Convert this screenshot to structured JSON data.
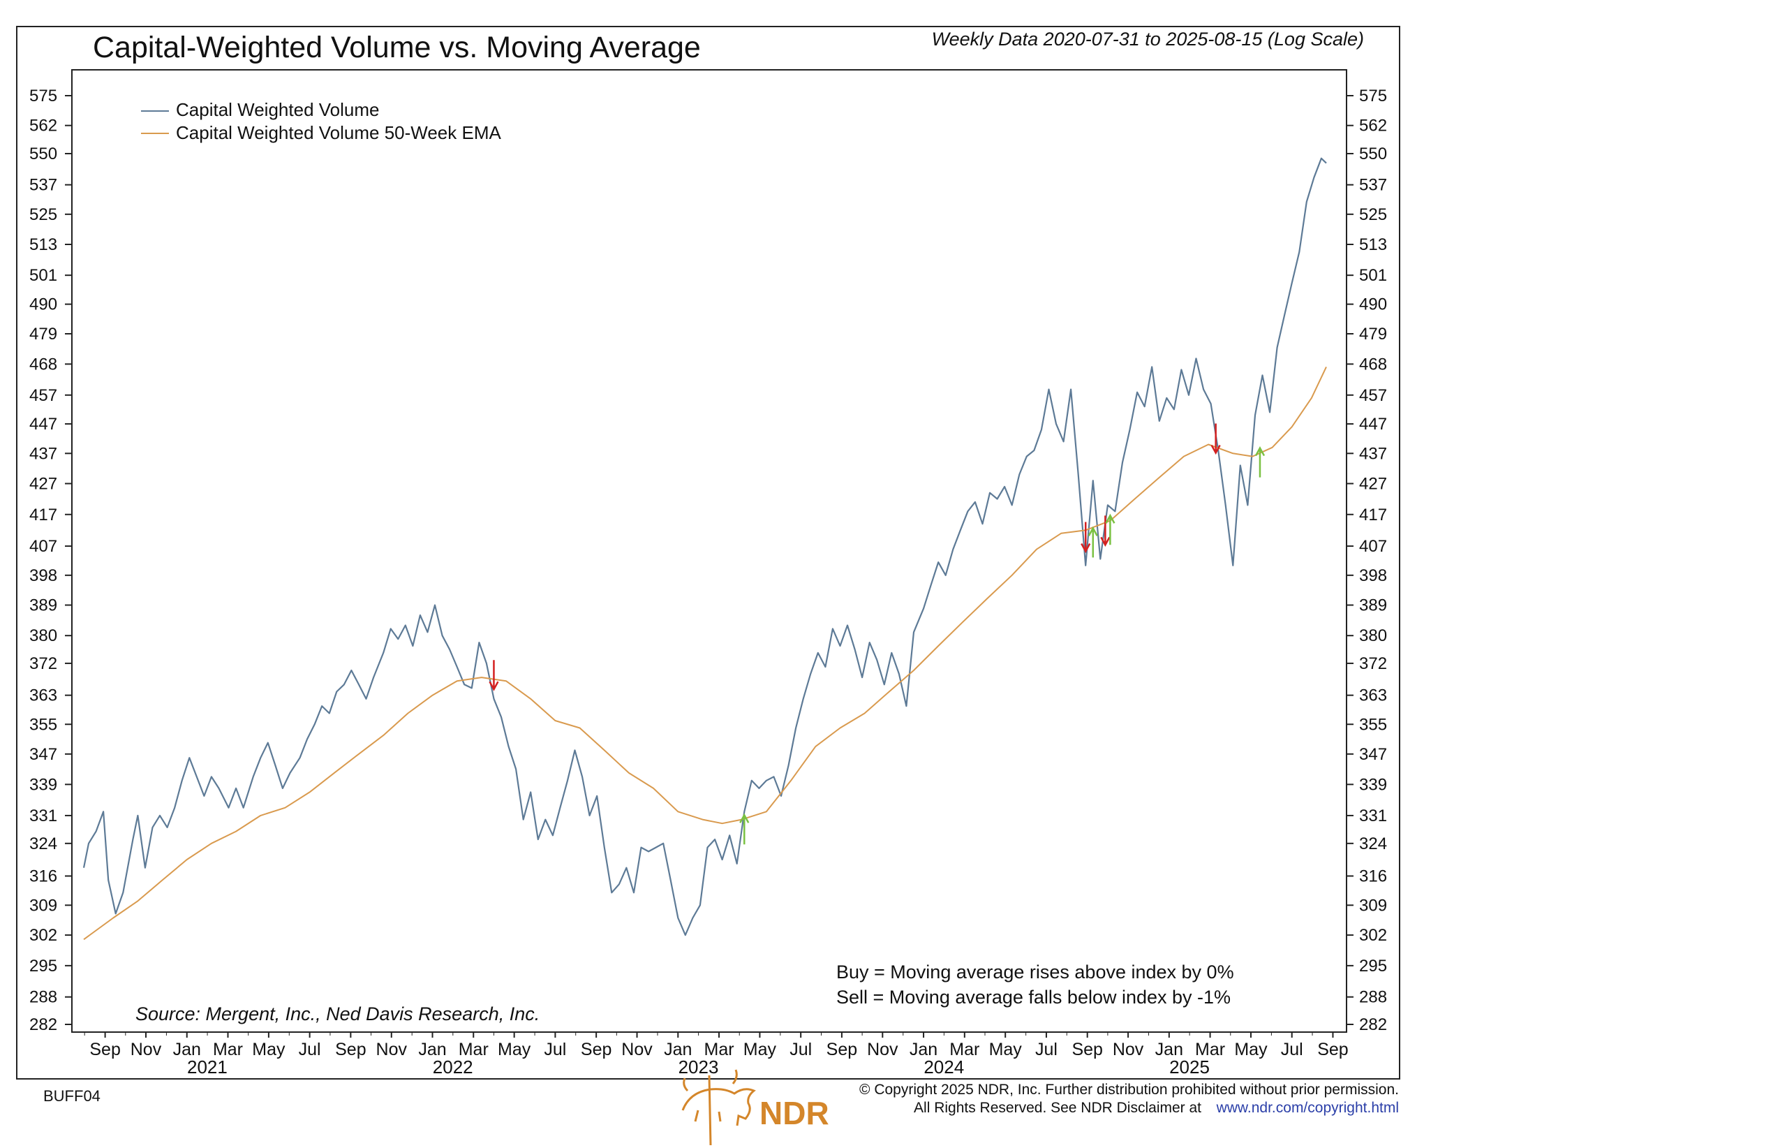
{
  "chart_data": {
    "type": "line",
    "scale": "log",
    "title": "Capital-Weighted Volume vs. Moving Average",
    "subtitle": "Weekly Data 2020-07-31 to 2025-08-15 (Log Scale)",
    "ylim": [
      280,
      580
    ],
    "xlim": [
      2020.58,
      2025.66
    ],
    "y_ticks": [
      575,
      562,
      550,
      537,
      525,
      513,
      501,
      490,
      479,
      468,
      457,
      447,
      437,
      427,
      417,
      407,
      398,
      389,
      380,
      372,
      363,
      355,
      347,
      339,
      331,
      324,
      316,
      309,
      302,
      295,
      288,
      282
    ],
    "x_month_labels": [
      {
        "t": 2020.667,
        "label": "Sep"
      },
      {
        "t": 2020.833,
        "label": "Nov"
      },
      {
        "t": 2021.0,
        "label": "Jan"
      },
      {
        "t": 2021.167,
        "label": "Mar"
      },
      {
        "t": 2021.333,
        "label": "May"
      },
      {
        "t": 2021.5,
        "label": "Jul"
      },
      {
        "t": 2021.667,
        "label": "Sep"
      },
      {
        "t": 2021.833,
        "label": "Nov"
      },
      {
        "t": 2022.0,
        "label": "Jan"
      },
      {
        "t": 2022.167,
        "label": "Mar"
      },
      {
        "t": 2022.333,
        "label": "May"
      },
      {
        "t": 2022.5,
        "label": "Jul"
      },
      {
        "t": 2022.667,
        "label": "Sep"
      },
      {
        "t": 2022.833,
        "label": "Nov"
      },
      {
        "t": 2023.0,
        "label": "Jan"
      },
      {
        "t": 2023.167,
        "label": "Mar"
      },
      {
        "t": 2023.333,
        "label": "May"
      },
      {
        "t": 2023.5,
        "label": "Jul"
      },
      {
        "t": 2023.667,
        "label": "Sep"
      },
      {
        "t": 2023.833,
        "label": "Nov"
      },
      {
        "t": 2024.0,
        "label": "Jan"
      },
      {
        "t": 2024.167,
        "label": "Mar"
      },
      {
        "t": 2024.333,
        "label": "May"
      },
      {
        "t": 2024.5,
        "label": "Jul"
      },
      {
        "t": 2024.667,
        "label": "Sep"
      },
      {
        "t": 2024.833,
        "label": "Nov"
      },
      {
        "t": 2025.0,
        "label": "Jan"
      },
      {
        "t": 2025.167,
        "label": "Mar"
      },
      {
        "t": 2025.333,
        "label": "May"
      },
      {
        "t": 2025.5,
        "label": "Jul"
      },
      {
        "t": 2025.667,
        "label": "Sep"
      }
    ],
    "x_year_labels": [
      {
        "t": 2021.083,
        "label": "2021"
      },
      {
        "t": 2022.083,
        "label": "2022"
      },
      {
        "t": 2023.083,
        "label": "2023"
      },
      {
        "t": 2024.083,
        "label": "2024"
      },
      {
        "t": 2025.083,
        "label": "2025"
      }
    ],
    "series": [
      {
        "name": "Capital Weighted Volume",
        "color": "#5d7a96",
        "points": [
          [
            2020.58,
            318
          ],
          [
            2020.6,
            324
          ],
          [
            2020.63,
            327
          ],
          [
            2020.66,
            332
          ],
          [
            2020.68,
            315
          ],
          [
            2020.71,
            307
          ],
          [
            2020.74,
            312
          ],
          [
            2020.78,
            325
          ],
          [
            2020.8,
            331
          ],
          [
            2020.83,
            318
          ],
          [
            2020.86,
            328
          ],
          [
            2020.89,
            331
          ],
          [
            2020.92,
            328
          ],
          [
            2020.95,
            333
          ],
          [
            2020.98,
            340
          ],
          [
            2021.01,
            346
          ],
          [
            2021.04,
            341
          ],
          [
            2021.07,
            336
          ],
          [
            2021.1,
            341
          ],
          [
            2021.13,
            338
          ],
          [
            2021.17,
            333
          ],
          [
            2021.2,
            338
          ],
          [
            2021.23,
            333
          ],
          [
            2021.27,
            341
          ],
          [
            2021.3,
            346
          ],
          [
            2021.33,
            350
          ],
          [
            2021.36,
            344
          ],
          [
            2021.39,
            338
          ],
          [
            2021.42,
            342
          ],
          [
            2021.46,
            346
          ],
          [
            2021.49,
            351
          ],
          [
            2021.52,
            355
          ],
          [
            2021.55,
            360
          ],
          [
            2021.58,
            358
          ],
          [
            2021.61,
            364
          ],
          [
            2021.64,
            366
          ],
          [
            2021.67,
            370
          ],
          [
            2021.7,
            366
          ],
          [
            2021.73,
            362
          ],
          [
            2021.76,
            368
          ],
          [
            2021.8,
            375
          ],
          [
            2021.83,
            382
          ],
          [
            2021.86,
            379
          ],
          [
            2021.89,
            383
          ],
          [
            2021.92,
            377
          ],
          [
            2021.95,
            386
          ],
          [
            2021.98,
            381
          ],
          [
            2022.01,
            389
          ],
          [
            2022.04,
            380
          ],
          [
            2022.07,
            376
          ],
          [
            2022.1,
            371
          ],
          [
            2022.13,
            366
          ],
          [
            2022.16,
            365
          ],
          [
            2022.19,
            378
          ],
          [
            2022.22,
            372
          ],
          [
            2022.25,
            362
          ],
          [
            2022.28,
            357
          ],
          [
            2022.31,
            349
          ],
          [
            2022.34,
            343
          ],
          [
            2022.37,
            330
          ],
          [
            2022.4,
            337
          ],
          [
            2022.43,
            325
          ],
          [
            2022.46,
            330
          ],
          [
            2022.49,
            326
          ],
          [
            2022.52,
            333
          ],
          [
            2022.55,
            340
          ],
          [
            2022.58,
            348
          ],
          [
            2022.61,
            341
          ],
          [
            2022.64,
            331
          ],
          [
            2022.67,
            336
          ],
          [
            2022.7,
            323
          ],
          [
            2022.73,
            312
          ],
          [
            2022.76,
            314
          ],
          [
            2022.79,
            318
          ],
          [
            2022.82,
            312
          ],
          [
            2022.85,
            323
          ],
          [
            2022.88,
            322
          ],
          [
            2022.91,
            323
          ],
          [
            2022.94,
            324
          ],
          [
            2022.97,
            315
          ],
          [
            2023.0,
            306
          ],
          [
            2023.03,
            302
          ],
          [
            2023.06,
            306
          ],
          [
            2023.09,
            309
          ],
          [
            2023.12,
            323
          ],
          [
            2023.15,
            325
          ],
          [
            2023.18,
            320
          ],
          [
            2023.21,
            326
          ],
          [
            2023.24,
            319
          ],
          [
            2023.27,
            332
          ],
          [
            2023.3,
            340
          ],
          [
            2023.33,
            338
          ],
          [
            2023.36,
            340
          ],
          [
            2023.39,
            341
          ],
          [
            2023.42,
            336
          ],
          [
            2023.45,
            344
          ],
          [
            2023.48,
            354
          ],
          [
            2023.51,
            362
          ],
          [
            2023.54,
            369
          ],
          [
            2023.57,
            375
          ],
          [
            2023.6,
            371
          ],
          [
            2023.63,
            382
          ],
          [
            2023.66,
            377
          ],
          [
            2023.69,
            383
          ],
          [
            2023.72,
            376
          ],
          [
            2023.75,
            368
          ],
          [
            2023.78,
            378
          ],
          [
            2023.81,
            373
          ],
          [
            2023.84,
            366
          ],
          [
            2023.87,
            375
          ],
          [
            2023.9,
            369
          ],
          [
            2023.93,
            360
          ],
          [
            2023.96,
            381
          ],
          [
            2024.0,
            388
          ],
          [
            2024.03,
            395
          ],
          [
            2024.06,
            402
          ],
          [
            2024.09,
            398
          ],
          [
            2024.12,
            406
          ],
          [
            2024.15,
            412
          ],
          [
            2024.18,
            418
          ],
          [
            2024.21,
            421
          ],
          [
            2024.24,
            414
          ],
          [
            2024.27,
            424
          ],
          [
            2024.3,
            422
          ],
          [
            2024.33,
            426
          ],
          [
            2024.36,
            420
          ],
          [
            2024.39,
            430
          ],
          [
            2024.42,
            436
          ],
          [
            2024.45,
            438
          ],
          [
            2024.48,
            445
          ],
          [
            2024.51,
            459
          ],
          [
            2024.54,
            447
          ],
          [
            2024.57,
            441
          ],
          [
            2024.6,
            459
          ],
          [
            2024.63,
            430
          ],
          [
            2024.66,
            401
          ],
          [
            2024.69,
            428
          ],
          [
            2024.72,
            403
          ],
          [
            2024.75,
            420
          ],
          [
            2024.78,
            418
          ],
          [
            2024.81,
            434
          ],
          [
            2024.84,
            445
          ],
          [
            2024.87,
            458
          ],
          [
            2024.9,
            453
          ],
          [
            2024.93,
            467
          ],
          [
            2024.96,
            448
          ],
          [
            2024.99,
            456
          ],
          [
            2025.02,
            452
          ],
          [
            2025.05,
            466
          ],
          [
            2025.08,
            457
          ],
          [
            2025.11,
            470
          ],
          [
            2025.14,
            459
          ],
          [
            2025.17,
            454
          ],
          [
            2025.2,
            438
          ],
          [
            2025.23,
            420
          ],
          [
            2025.26,
            401
          ],
          [
            2025.29,
            433
          ],
          [
            2025.32,
            420
          ],
          [
            2025.35,
            450
          ],
          [
            2025.38,
            464
          ],
          [
            2025.41,
            451
          ],
          [
            2025.44,
            474
          ],
          [
            2025.47,
            486
          ],
          [
            2025.5,
            498
          ],
          [
            2025.53,
            510
          ],
          [
            2025.56,
            530
          ],
          [
            2025.59,
            540
          ],
          [
            2025.62,
            548
          ],
          [
            2025.64,
            546
          ]
        ]
      },
      {
        "name": "Capital Weighted Volume 50-Week EMA",
        "color": "#d99a4e",
        "points": [
          [
            2020.58,
            301
          ],
          [
            2020.7,
            306
          ],
          [
            2020.8,
            310
          ],
          [
            2020.9,
            315
          ],
          [
            2021.0,
            320
          ],
          [
            2021.1,
            324
          ],
          [
            2021.2,
            327
          ],
          [
            2021.3,
            331
          ],
          [
            2021.4,
            333
          ],
          [
            2021.5,
            337
          ],
          [
            2021.6,
            342
          ],
          [
            2021.7,
            347
          ],
          [
            2021.8,
            352
          ],
          [
            2021.9,
            358
          ],
          [
            2022.0,
            363
          ],
          [
            2022.1,
            367
          ],
          [
            2022.2,
            368
          ],
          [
            2022.3,
            367
          ],
          [
            2022.4,
            362
          ],
          [
            2022.5,
            356
          ],
          [
            2022.6,
            354
          ],
          [
            2022.7,
            348
          ],
          [
            2022.8,
            342
          ],
          [
            2022.9,
            338
          ],
          [
            2023.0,
            332
          ],
          [
            2023.1,
            330
          ],
          [
            2023.18,
            329
          ],
          [
            2023.26,
            330
          ],
          [
            2023.36,
            332
          ],
          [
            2023.46,
            340
          ],
          [
            2023.56,
            349
          ],
          [
            2023.66,
            354
          ],
          [
            2023.76,
            358
          ],
          [
            2023.86,
            364
          ],
          [
            2023.96,
            370
          ],
          [
            2024.06,
            377
          ],
          [
            2024.16,
            384
          ],
          [
            2024.26,
            391
          ],
          [
            2024.36,
            398
          ],
          [
            2024.46,
            406
          ],
          [
            2024.56,
            411
          ],
          [
            2024.66,
            412
          ],
          [
            2024.76,
            415
          ],
          [
            2024.86,
            422
          ],
          [
            2024.96,
            429
          ],
          [
            2025.06,
            436
          ],
          [
            2025.16,
            440
          ],
          [
            2025.26,
            437
          ],
          [
            2025.34,
            436
          ],
          [
            2025.42,
            439
          ],
          [
            2025.5,
            446
          ],
          [
            2025.58,
            456
          ],
          [
            2025.64,
            467
          ]
        ]
      }
    ],
    "signals": [
      {
        "type": "sell",
        "t": 2022.25,
        "v": 367
      },
      {
        "type": "buy",
        "t": 2023.27,
        "v": 329
      },
      {
        "type": "sell",
        "t": 2024.66,
        "v": 408
      },
      {
        "type": "buy",
        "t": 2024.69,
        "v": 410
      },
      {
        "type": "sell",
        "t": 2024.74,
        "v": 410
      },
      {
        "type": "buy",
        "t": 2024.76,
        "v": 414
      },
      {
        "type": "sell",
        "t": 2025.19,
        "v": 440
      },
      {
        "type": "buy",
        "t": 2025.37,
        "v": 436
      }
    ],
    "annotations": {
      "buy_rule": "Buy = Moving average rises above index by 0%",
      "sell_rule": "Sell = Moving average falls below index by -1%",
      "source": "Source:   Mergent, Inc., Ned Davis Research, Inc."
    }
  },
  "footer": {
    "code": "BUFF04",
    "copyright_line1": "© Copyright 2025 NDR, Inc. Further distribution prohibited without prior permission.",
    "copyright_line2": "All Rights Reserved. See NDR Disclaimer at",
    "link": "www.ndr.com/copyright.html",
    "brand": "NDR"
  },
  "colors": {
    "buy_arrow": "#7ac142",
    "sell_arrow": "#d42020",
    "frame": "#222222"
  }
}
